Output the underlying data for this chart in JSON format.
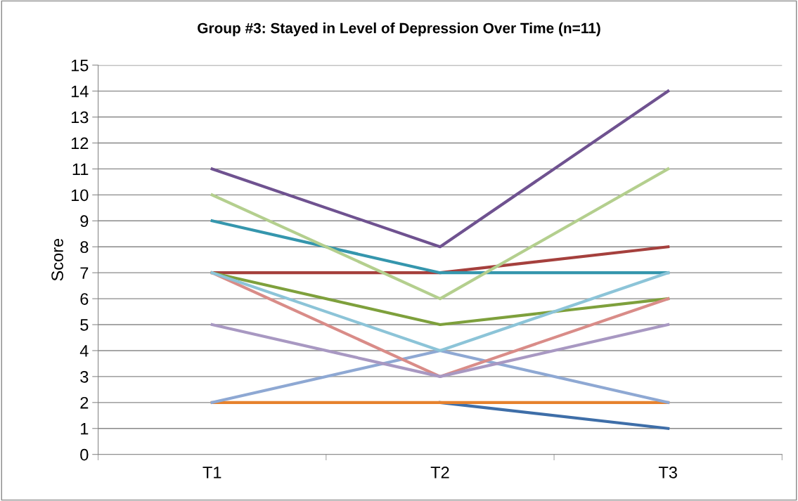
{
  "chart_data": {
    "type": "line",
    "title": "Group #3: Stayed in Level of Depression Over Time (n=11)",
    "ylabel": "Score",
    "categories": [
      "T1",
      "T2",
      "T3"
    ],
    "series": [
      {
        "color": "#3e6ea8",
        "values": [
          null,
          2,
          1
        ]
      },
      {
        "color": "#a5403d",
        "values": [
          7,
          7,
          8
        ]
      },
      {
        "color": "#7ea03c",
        "values": [
          7,
          5,
          6
        ]
      },
      {
        "color": "#6f5290",
        "values": [
          11,
          8,
          14
        ]
      },
      {
        "color": "#3596ad",
        "values": [
          9,
          7,
          7
        ]
      },
      {
        "color": "#e6822e",
        "values": [
          2,
          2,
          2
        ]
      },
      {
        "color": "#8ea8d3",
        "values": [
          2,
          4,
          2
        ]
      },
      {
        "color": "#d98c88",
        "values": [
          7,
          3,
          6
        ]
      },
      {
        "color": "#b4cf8e",
        "values": [
          10,
          6,
          11
        ]
      },
      {
        "color": "#a898c2",
        "values": [
          5,
          3,
          5
        ]
      },
      {
        "color": "#8cc4d8",
        "values": [
          7,
          4,
          7
        ]
      }
    ],
    "ylim": [
      0,
      15
    ],
    "yticks": [
      0,
      1,
      2,
      3,
      4,
      5,
      6,
      7,
      8,
      9,
      10,
      11,
      12,
      13,
      14,
      15
    ],
    "grid": "y",
    "legend": false,
    "marker": "none",
    "line_style": "solid"
  }
}
